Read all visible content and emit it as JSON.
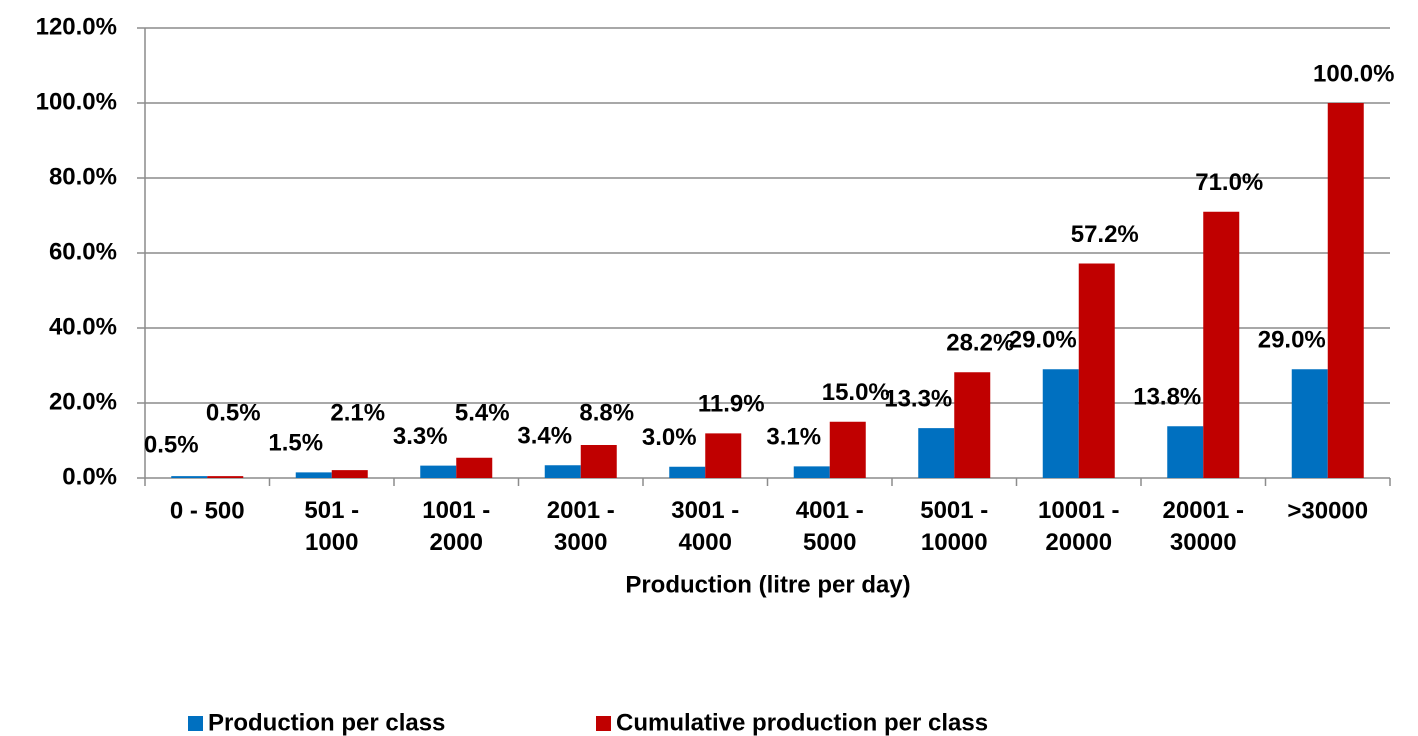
{
  "chart_data": {
    "type": "bar",
    "x_label": "Production (litre per day)",
    "categories": [
      "0 - 500",
      "501 - 1000",
      "1001 - 2000",
      "2001 - 3000",
      "3001 - 4000",
      "4001 - 5000",
      "5001 - 10000",
      "10001 - 20000",
      "20001 - 30000",
      ">30000"
    ],
    "series": [
      {
        "name": "Production per class",
        "color": "#0070c0",
        "values": [
          0.5,
          1.5,
          3.3,
          3.4,
          3.0,
          3.1,
          13.3,
          29.0,
          13.8,
          29.0
        ],
        "value_labels": [
          "0.5%",
          "1.5%",
          "3.3%",
          "3.4%",
          "3.0%",
          "3.1%",
          "13.3%",
          "29.0%",
          "13.8%",
          "29.0%"
        ]
      },
      {
        "name": "Cumulative production per class",
        "color": "#c00000",
        "values": [
          0.5,
          2.1,
          5.4,
          8.8,
          11.9,
          15.0,
          28.2,
          57.2,
          71.0,
          100.0
        ],
        "value_labels": [
          "0.5%",
          "2.1%",
          "5.4%",
          "8.8%",
          "11.9%",
          "15.0%",
          "28.2%",
          "57.2%",
          "71.0%",
          "100.0%"
        ]
      }
    ],
    "ylim": [
      0,
      120
    ],
    "yticks": [
      {
        "value": 0,
        "label": "0.0%"
      },
      {
        "value": 20,
        "label": "20.0%"
      },
      {
        "value": 40,
        "label": "40.0%"
      },
      {
        "value": 60,
        "label": "60.0%"
      },
      {
        "value": 80,
        "label": "80.0%"
      },
      {
        "value": 100,
        "label": "100.0%"
      },
      {
        "value": 120,
        "label": "120.0%"
      }
    ],
    "grid": true,
    "legend": "bottom"
  }
}
